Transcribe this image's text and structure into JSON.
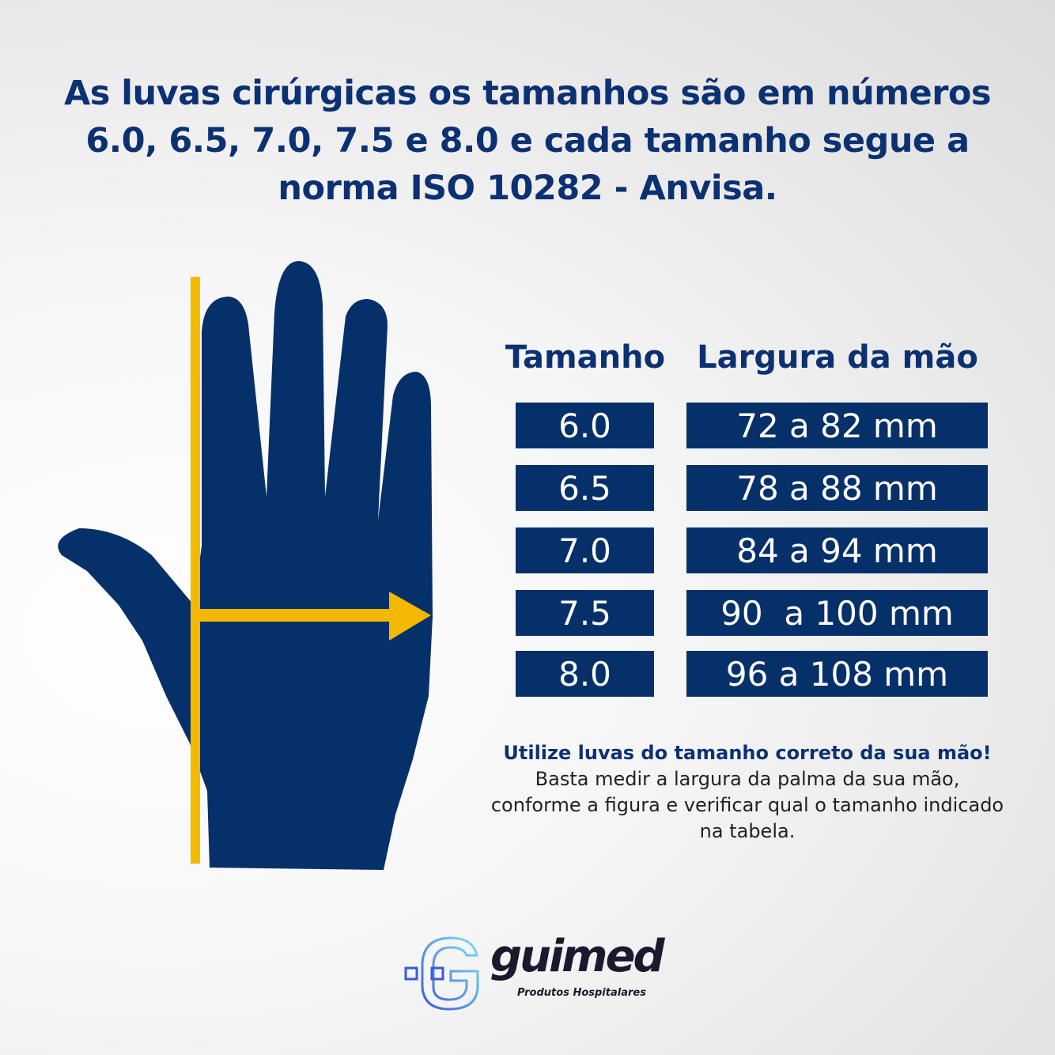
{
  "title": "As luvas cirúrgicas os tamanhos são em números 6.0, 6.5, 7.0, 7.5 e 8.0  e cada tamanho segue a norma ISO 10282 - Anvisa.",
  "colors": {
    "navy": "#06306a",
    "yellow": "#f2b900",
    "title": "#0c3173"
  },
  "table": {
    "headers": [
      "Tamanho",
      "Largura da mão"
    ],
    "rows": [
      {
        "size": "6.0",
        "width": "72 a 82 mm"
      },
      {
        "size": "6.5",
        "width": "78 a 88 mm"
      },
      {
        "size": "7.0",
        "width": "84 a 94 mm"
      },
      {
        "size": "7.5",
        "width": "90  a 100 mm"
      },
      {
        "size": "8.0",
        "width": "96 a 108 mm"
      }
    ]
  },
  "note": {
    "highlight": "Utilize luvas do tamanho correto da sua mão!",
    "body": "Basta medir a largura da palma da sua mão, conforme a figura e verificar qual o tamanho indicado na tabela."
  },
  "logo": {
    "brand": "guimed",
    "tagline": "Produtos Hospitalares"
  }
}
